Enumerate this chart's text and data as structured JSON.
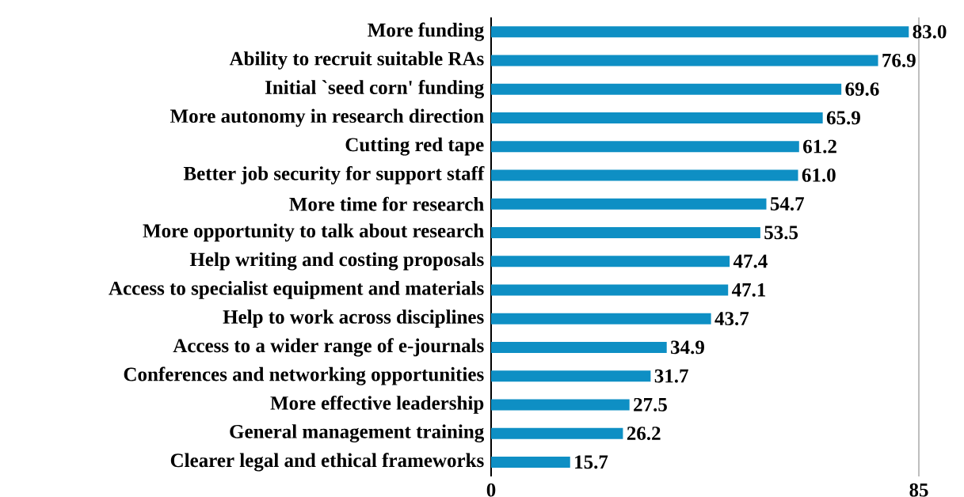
{
  "chart_data": {
    "type": "bar",
    "orientation": "horizontal",
    "categories": [
      "More funding",
      "Ability to recruit suitable RAs",
      "Initial `seed corn' funding",
      "More autonomy in research direction",
      "Cutting red tape",
      "Better job security for support staff",
      "More time for research",
      "More opportunity to talk about research",
      "Help writing and costing proposals",
      "Access to specialist equipment and materials",
      "Help to work across disciplines",
      "Access to a wider range of e-journals",
      "Conferences and networking opportunities",
      "More effective leadership",
      "General management training",
      "Clearer legal and ethical frameworks"
    ],
    "values": [
      83.0,
      76.9,
      69.6,
      65.9,
      61.2,
      61.0,
      54.7,
      53.5,
      47.4,
      47.1,
      43.7,
      34.9,
      31.7,
      27.5,
      26.2,
      15.7
    ],
    "value_labels": [
      "83.0",
      "76.9",
      "69.6",
      "65.9",
      "61.2",
      "61.0",
      "54.7",
      "53.5",
      "47.4",
      "47.1",
      "43.7",
      "34.9",
      "31.7",
      "27.5",
      "26.2",
      "15.7"
    ],
    "color": "#0e8fc4",
    "xlim": [
      0,
      85
    ],
    "xticks": [
      0,
      85
    ],
    "ref_lines": [
      {
        "axis": "x",
        "value": 85,
        "color": "#bfbfbf"
      }
    ]
  }
}
